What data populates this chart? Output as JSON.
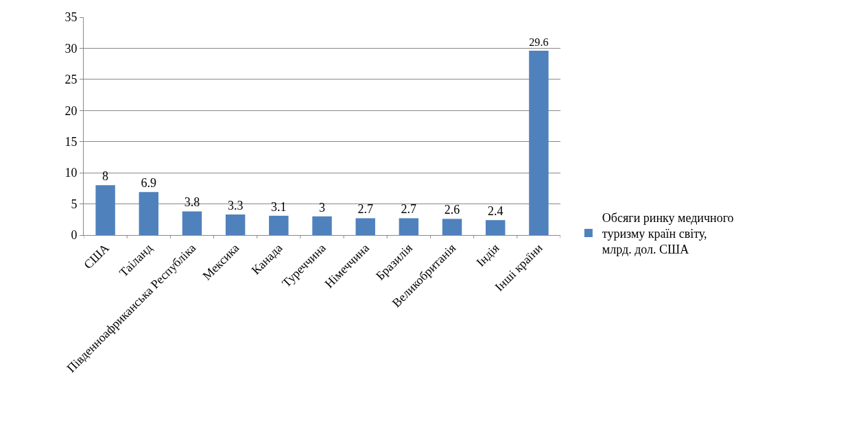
{
  "chart_data": {
    "type": "bar",
    "categories": [
      "США",
      "Таіланд",
      "Південноафриканська Республіка",
      "Мексика",
      "Канада",
      "Туреччина",
      "Німеччина",
      "Бразилія",
      "Великобританія",
      "Індія",
      "Інші країни"
    ],
    "series": [
      {
        "name": "Обсяги ринку медичного туризму країн світу, млрд. дол. США",
        "color": "#4f81bd",
        "values": [
          8,
          6.9,
          3.8,
          3.3,
          3.1,
          3,
          2.7,
          2.7,
          2.6,
          2.4,
          29.6
        ]
      }
    ],
    "ylim": [
      0,
      35
    ],
    "yticks": [
      0,
      5,
      10,
      15,
      20,
      25,
      30,
      35
    ],
    "data_labels": true,
    "grid": "y",
    "legend": "right"
  }
}
